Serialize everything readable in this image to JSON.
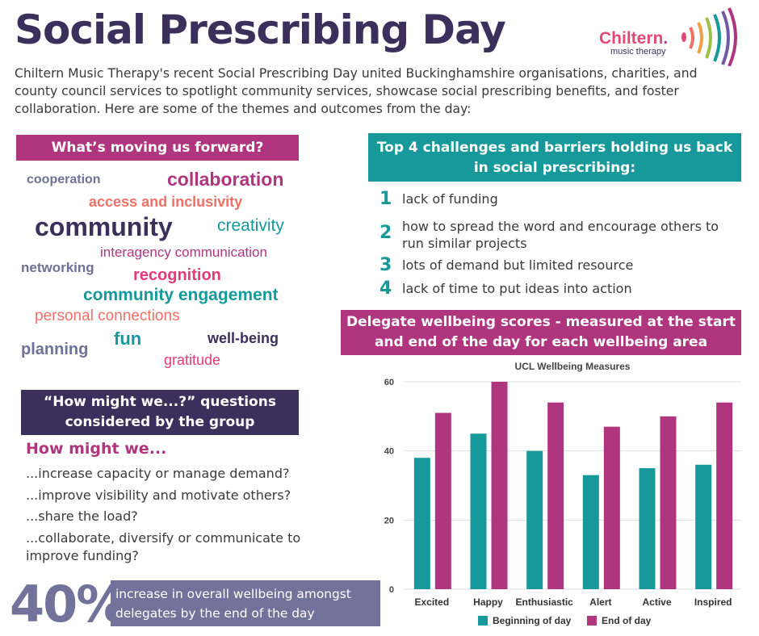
{
  "title": "Social Prescribing Day",
  "logo": {
    "name_part1": "Chiltern",
    "name_part2": ".",
    "subtitle": "music therapy"
  },
  "intro": "Chiltern Music Therapy's recent Social Prescribing Day united Buckinghamshire organisations, charities, and county council services to spotlight community services, showcase social prescribing benefits, and foster collaboration. Here are some of the themes and outcomes from the day:",
  "forward": {
    "heading": "What’s moving us forward?",
    "words": [
      {
        "text": "cooperation",
        "color": "#6f7196"
      },
      {
        "text": "collaboration",
        "color": "#b0357f"
      },
      {
        "text": "access and inclusivity",
        "color": "#ee7066"
      },
      {
        "text": "community",
        "color": "#3b2f5c"
      },
      {
        "text": "creativity",
        "color": "#17999b"
      },
      {
        "text": "interagency communication",
        "color": "#b0357f"
      },
      {
        "text": "networking",
        "color": "#6f7196"
      },
      {
        "text": "recognition",
        "color": "#e23a7a"
      },
      {
        "text": "community engagement",
        "color": "#17999b"
      },
      {
        "text": "personal connections",
        "color": "#ee7066"
      },
      {
        "text": "fun",
        "color": "#17999b"
      },
      {
        "text": "well-being",
        "color": "#3b2f5c"
      },
      {
        "text": "planning",
        "color": "#6f7196"
      },
      {
        "text": "gratitude",
        "color": "#e23a7a"
      }
    ]
  },
  "challenges": {
    "heading": "Top 4 challenges and barriers holding us back in social prescribing:",
    "items": [
      {
        "num": "1",
        "text": "lack of funding"
      },
      {
        "num": "2",
        "text": "how to spread the word and encourage others to run similar projects"
      },
      {
        "num": "3",
        "text": "lots of demand but limited resource"
      },
      {
        "num": "4",
        "text": "lack of time to put ideas into action"
      }
    ]
  },
  "wellbeing": {
    "heading": "Delegate wellbeing scores - measured at the start and end of the day for each wellbeing area"
  },
  "hmw": {
    "heading": "“How might we...?” questions considered by the group",
    "lead": "How might we...",
    "questions": [
      "...increase capacity or manage demand?",
      "...improve visibility and motivate others?",
      "...share the load?",
      "...collaborate, diversify or communicate to improve funding?"
    ]
  },
  "stat": {
    "value": "40%",
    "text": "increase in overall wellbeing amongst delegates by the end of the day"
  },
  "colors": {
    "teal": "#17999b",
    "magenta": "#b0357f",
    "dark": "#3b2f5c",
    "grey": "#72739a"
  },
  "chart_data": {
    "type": "bar",
    "title": "UCL Wellbeing Measures",
    "categories": [
      "Excited",
      "Happy",
      "Enthusiastic",
      "Alert",
      "Active",
      "Inspired"
    ],
    "series": [
      {
        "name": "Beginning of day",
        "color": "#17999b",
        "values": [
          38,
          45,
          40,
          33,
          35,
          36
        ]
      },
      {
        "name": "End of day",
        "color": "#b0357f",
        "values": [
          51,
          60,
          54,
          47,
          50,
          54
        ]
      }
    ],
    "ylim": [
      0,
      60
    ],
    "yticks": [
      0,
      20,
      40,
      60
    ],
    "grid": true,
    "legend": "bottom"
  }
}
